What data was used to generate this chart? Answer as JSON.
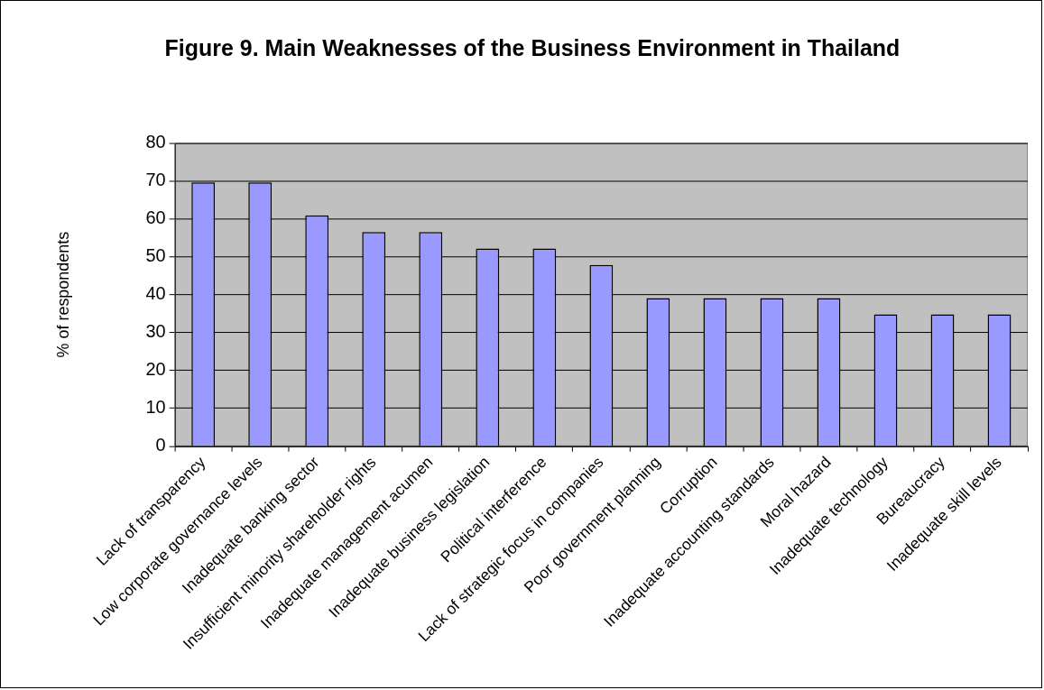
{
  "chart_data": {
    "type": "bar",
    "title": "Figure 9. Main Weaknesses of the Business Environment in Thailand",
    "ylabel": "% of respondents",
    "categories": [
      "Lack of transparency",
      "Low corporate governance levels",
      "Inadequate banking sector",
      "Insufficient minority shareholder rights",
      "Inadequate management acumen",
      "Inadequate business legislation",
      "Political interference",
      "Lack of strategic focus in companies",
      "Poor government planning",
      "Corruption",
      "Inadequate accounting standards",
      "Moral hazard",
      "Inadequate technology",
      "Bureaucracy",
      "Inadequate skill levels"
    ],
    "values": [
      69.6,
      69.6,
      60.9,
      56.5,
      56.5,
      52.2,
      52.2,
      47.8,
      39.1,
      39.1,
      39.1,
      39.1,
      34.8,
      34.8,
      34.8
    ],
    "color": "#9999ff",
    "ylim": [
      0,
      80
    ],
    "yticks": [
      0,
      10,
      20,
      30,
      40,
      50,
      60,
      70,
      80
    ],
    "grid": "y"
  }
}
